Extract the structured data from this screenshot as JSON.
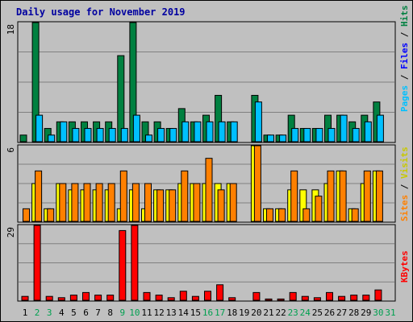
{
  "chart_data": {
    "type": "bar",
    "title": "Daily usage for November 2019",
    "categories": [
      "1",
      "2",
      "3",
      "4",
      "5",
      "6",
      "7",
      "8",
      "9",
      "10",
      "11",
      "12",
      "13",
      "14",
      "15",
      "16",
      "17",
      "18",
      "19",
      "20",
      "21",
      "22",
      "23",
      "24",
      "25",
      "26",
      "27",
      "28",
      "29",
      "30",
      "31"
    ],
    "weekend_days": [
      2,
      3,
      9,
      10,
      16,
      17,
      23,
      24,
      30,
      31
    ],
    "colors": {
      "hits": "#008040",
      "files": "#00c0ff",
      "pages": "#00c0ff",
      "visits": "#ffff00",
      "sites": "#ff8000",
      "kbytes": "#ff0000",
      "weekday_label": "#000000",
      "weekend_label": "#00a050",
      "title": "#0000a0",
      "legend_pages": "#00c0ff",
      "legend_files": "#0000ff",
      "legend_hits": "#008040",
      "legend_sites": "#ff8000",
      "legend_visits": "#c8c800",
      "legend_kbytes": "#ff0000"
    },
    "panels": [
      {
        "name": "hits_files_pages",
        "ymax": 18,
        "ytick_label": "18",
        "legend": [
          "Pages",
          "Files",
          "Hits"
        ],
        "series": [
          {
            "name": "Hits",
            "values": [
              1,
              18,
              2,
              3,
              3,
              3,
              3,
              3,
              13,
              18,
              3,
              3,
              2,
              5,
              3,
              4,
              7,
              3,
              0,
              7,
              1,
              1,
              4,
              2,
              2,
              4,
              4,
              3,
              4,
              6,
              0
            ]
          },
          {
            "name": "Files",
            "values": [
              0,
              4,
              1,
              3,
              2,
              2,
              2,
              2,
              2,
              4,
              1,
              2,
              2,
              3,
              3,
              3,
              3,
              3,
              0,
              6,
              1,
              1,
              2,
              2,
              2,
              2,
              4,
              2,
              3,
              4,
              0
            ]
          }
        ]
      },
      {
        "name": "visits_sites",
        "ymax": 6,
        "ytick_label": "6",
        "legend": [
          "Sites",
          "Visits"
        ],
        "series": [
          {
            "name": "Visits",
            "values": [
              0,
              3,
              1,
              3,
              2.5,
              2.5,
              2.5,
              2.5,
              1,
              2.5,
              1,
              2.5,
              2.5,
              3,
              3,
              3,
              3,
              3,
              0,
              6,
              1,
              1,
              2.5,
              2.5,
              2.5,
              3,
              4,
              1,
              3,
              4,
              0
            ]
          },
          {
            "name": "Sites",
            "values": [
              1,
              4,
              1,
              3,
              3,
              3,
              3,
              3,
              4,
              3,
              3,
              2.5,
              2.5,
              4,
              3,
              5,
              2.5,
              3,
              0,
              6,
              1,
              1,
              4,
              1,
              2,
              4,
              4,
              1,
              4,
              4,
              0
            ]
          }
        ]
      },
      {
        "name": "kbytes",
        "ymax": 29,
        "ytick_label": "29",
        "legend": [
          "KBytes"
        ],
        "series": [
          {
            "name": "KBytes",
            "values": [
              1.5,
              29,
              1.5,
              1,
              2,
              3,
              2,
              2,
              27,
              29,
              3,
              2,
              1,
              3.5,
              1.5,
              3.5,
              6,
              1,
              0,
              3,
              0.5,
              0.5,
              3,
              1.5,
              1,
              3,
              1.5,
              2,
              2,
              4,
              0
            ]
          }
        ]
      }
    ]
  }
}
